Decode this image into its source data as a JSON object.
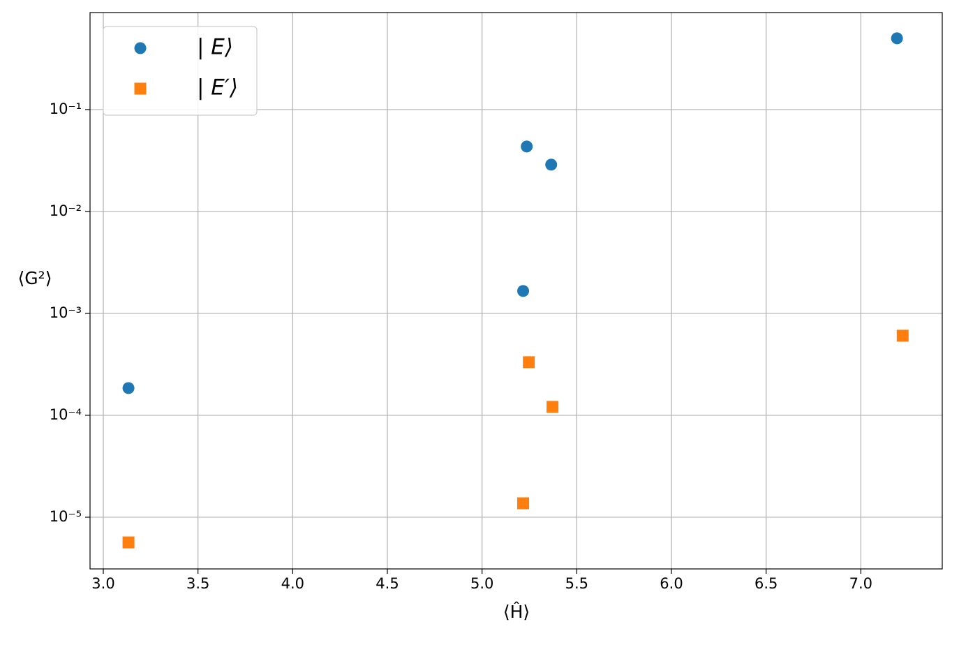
{
  "chart_data": {
    "type": "scatter",
    "xlabel": "⟨Ĥ⟩",
    "ylabel": "⟨G²⟩",
    "xlim": [
      2.93,
      7.43
    ],
    "ylim": [
      3.11e-06,
      0.895
    ],
    "yscale": "log",
    "grid": true,
    "legend": "upper left",
    "xticks": [
      {
        "value": 3,
        "label": "3.0"
      },
      3.5,
      {
        "value": 4,
        "label": "4.0"
      },
      4.5,
      {
        "value": 5,
        "label": "5.0"
      },
      5.5,
      {
        "value": 6,
        "label": "6.0"
      },
      6.5,
      {
        "value": 7,
        "label": "7.0"
      }
    ],
    "yticks": [
      {
        "value": 1e-05,
        "label": "10⁻⁵"
      },
      {
        "value": 0.0001,
        "label": "10⁻⁴"
      },
      {
        "value": 0.001,
        "label": "10⁻³"
      },
      {
        "value": 0.01,
        "label": "10⁻²"
      },
      {
        "value": 0.1,
        "label": "10⁻¹"
      }
    ],
    "series": [
      {
        "name": "| E⟩",
        "color": "#1f77b4",
        "marker": "circle",
        "x": [
          3.133,
          5.217,
          5.236,
          5.365,
          7.191
        ],
        "values": [
          0.000185,
          0.00166,
          0.0434,
          0.0288,
          0.5
        ]
      },
      {
        "name": "| E′⟩",
        "color": "#ff7f0e",
        "marker": "square",
        "x": [
          3.133,
          5.217,
          5.247,
          5.372,
          7.221
        ],
        "values": [
          5.66e-06,
          1.37e-05,
          0.000332,
          0.000121,
          0.000604
        ]
      }
    ]
  }
}
